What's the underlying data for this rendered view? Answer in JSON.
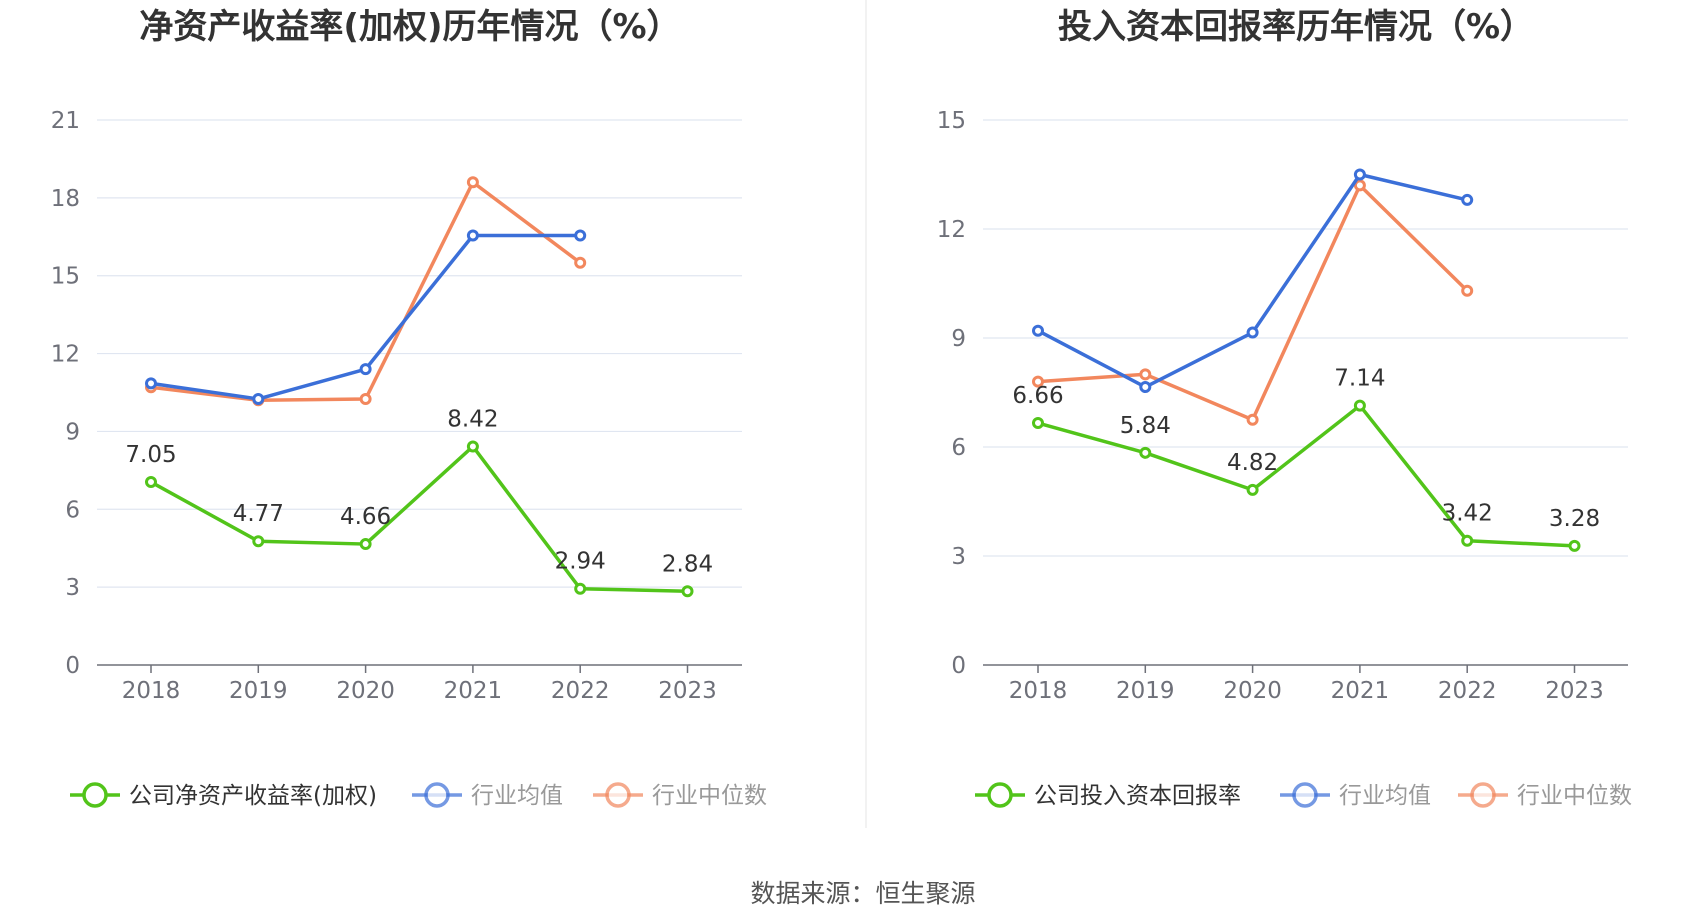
{
  "source_text": "数据来源：恒生聚源",
  "chart_data": [
    {
      "type": "line",
      "title": "净资产收益率(加权)历年情况（%）",
      "categories": [
        "2018",
        "2019",
        "2020",
        "2021",
        "2022",
        "2023"
      ],
      "ylim": [
        0,
        21
      ],
      "yticks": [
        0,
        3,
        6,
        9,
        12,
        15,
        18,
        21
      ],
      "grid": true,
      "legend_position": "bottom",
      "series": [
        {
          "name": "公司净资产收益率(加权)",
          "color": "#52c41a",
          "values": [
            7.05,
            4.77,
            4.66,
            8.42,
            2.94,
            2.84
          ],
          "labels": [
            "7.05",
            "4.77",
            "4.66",
            "8.42",
            "2.94",
            "2.84"
          ]
        },
        {
          "name": "行业均值",
          "color": "#3b6fd8",
          "values": [
            10.85,
            10.25,
            11.4,
            16.55,
            16.55,
            null
          ]
        },
        {
          "name": "行业中位数",
          "color": "#f2875d",
          "values": [
            10.7,
            10.2,
            10.25,
            18.6,
            15.5,
            null
          ]
        }
      ]
    },
    {
      "type": "line",
      "title": "投入资本回报率历年情况（%）",
      "categories": [
        "2018",
        "2019",
        "2020",
        "2021",
        "2022",
        "2023"
      ],
      "ylim": [
        0,
        15
      ],
      "yticks": [
        0,
        3,
        6,
        9,
        12,
        15
      ],
      "grid": true,
      "legend_position": "bottom",
      "series": [
        {
          "name": "公司投入资本回报率",
          "color": "#52c41a",
          "values": [
            6.66,
            5.84,
            4.82,
            7.14,
            3.42,
            3.28
          ],
          "labels": [
            "6.66",
            "5.84",
            "4.82",
            "7.14",
            "3.42",
            "3.28"
          ]
        },
        {
          "name": "行业均值",
          "color": "#3b6fd8",
          "values": [
            9.2,
            7.65,
            9.15,
            13.5,
            12.8,
            null
          ]
        },
        {
          "name": "行业中位数",
          "color": "#f2875d",
          "values": [
            7.8,
            8.0,
            6.75,
            13.2,
            10.3,
            null
          ]
        }
      ]
    }
  ]
}
